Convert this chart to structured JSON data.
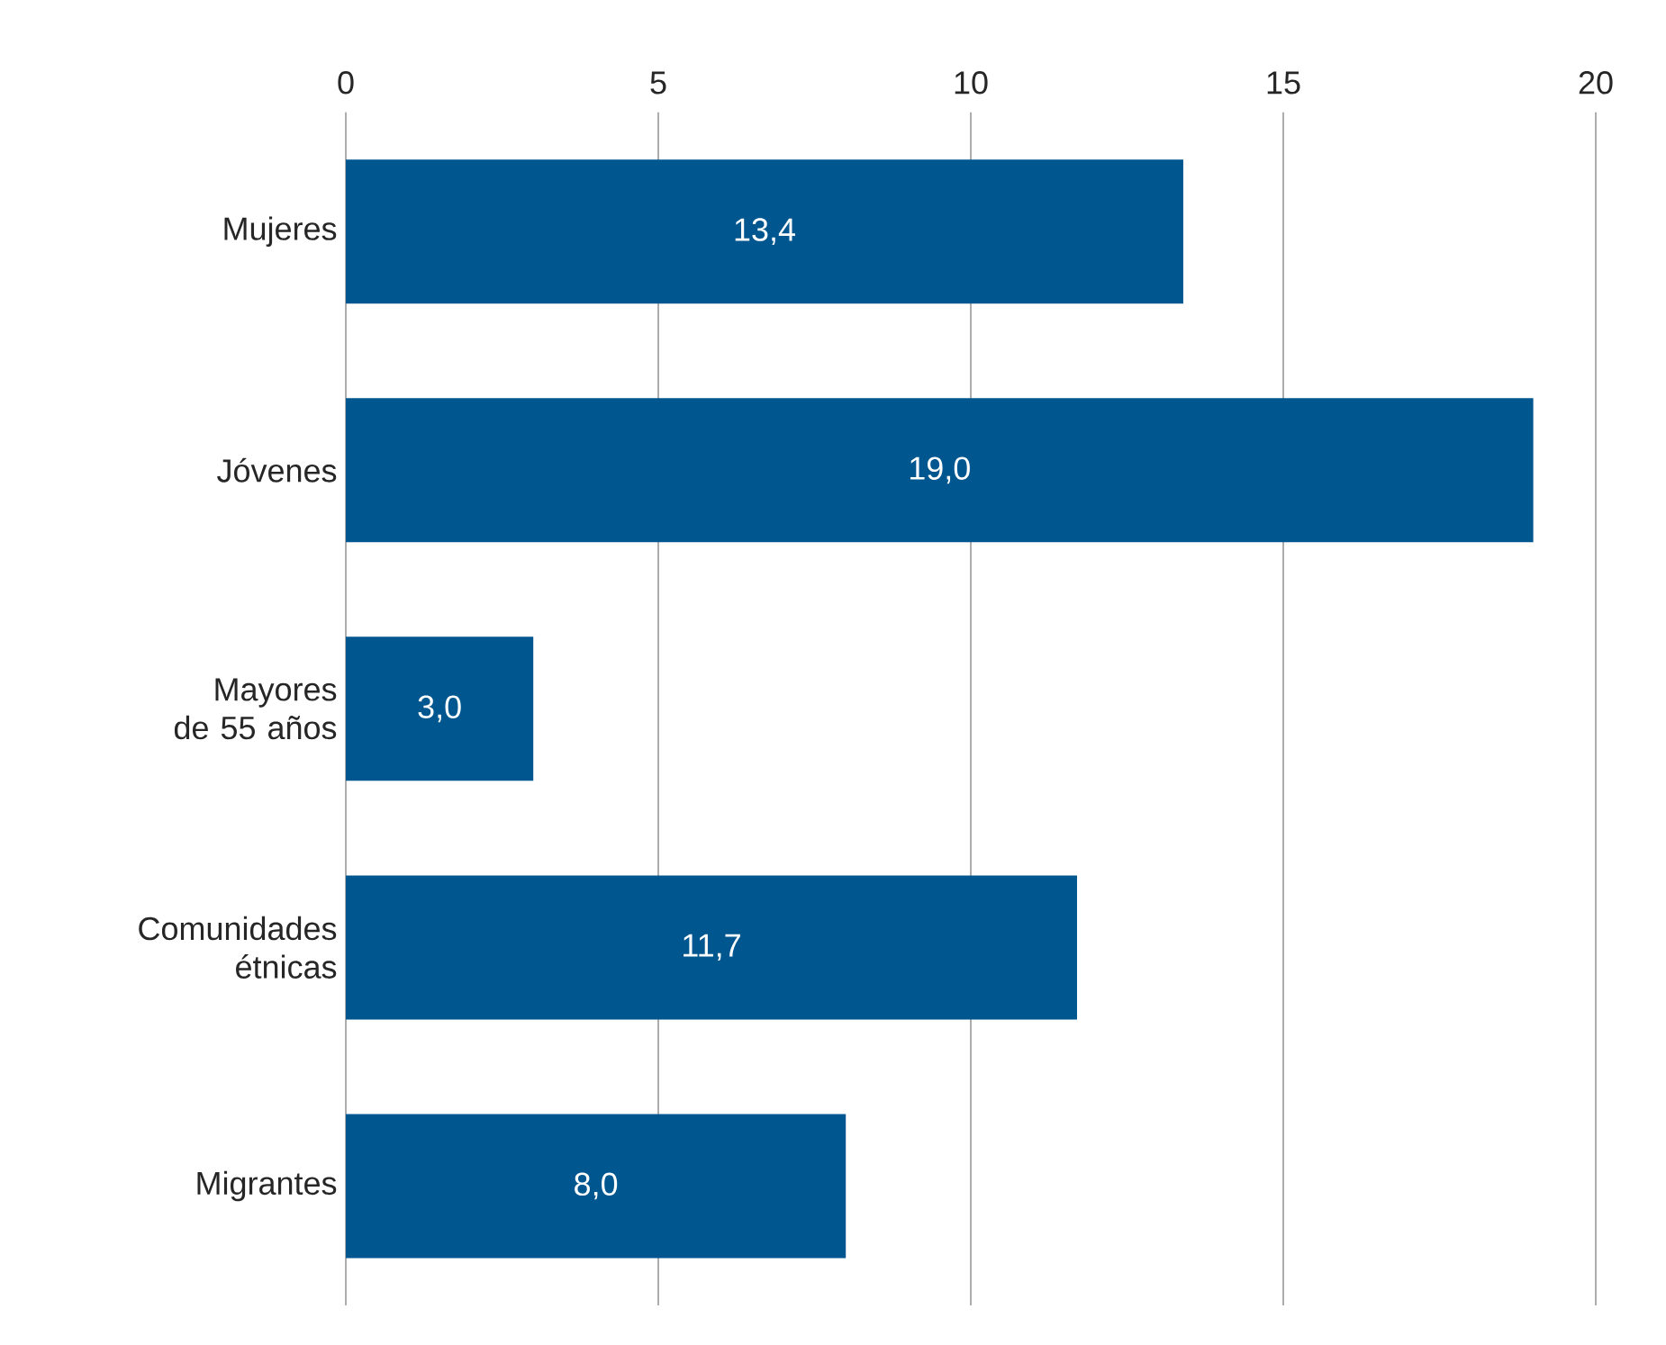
{
  "chart_data": {
    "type": "bar",
    "orientation": "horizontal",
    "categories": [
      "Mujeres",
      "Jóvenes",
      "Mayores de 55 años",
      "Comunidades étnicas",
      "Migrantes"
    ],
    "values": [
      13.4,
      19.0,
      3.0,
      11.7,
      8.0
    ],
    "value_labels": [
      "13,4",
      "19,0",
      "3,0",
      "11,7",
      "8,0"
    ],
    "color": "#00568f",
    "xlim": [
      0,
      20
    ],
    "xticks": [
      0,
      5,
      10,
      15,
      20
    ],
    "grid": "x"
  }
}
